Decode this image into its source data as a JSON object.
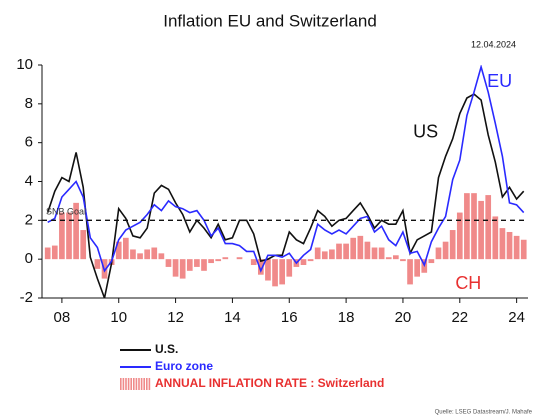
{
  "chart_data": {
    "type": "line",
    "title": "Inflation EU and Switzerland",
    "date": "12.04.2024",
    "source": "Quelle: LSEG Datastream/J. Mahafe",
    "goal": 2,
    "goal_label": "SNB Goal",
    "annotations": [
      {
        "text": "US",
        "x": 2020.8,
        "y": 6.5,
        "color": "#111111"
      },
      {
        "text": "EU",
        "x": 2023.4,
        "y": 9.1,
        "color": "#2a2aff"
      },
      {
        "text": "CH",
        "x": 2022.3,
        "y": -1.3,
        "color": "#e83030"
      }
    ],
    "x": [
      2007.5,
      2007.75,
      2008,
      2008.25,
      2008.5,
      2008.75,
      2009,
      2009.25,
      2009.5,
      2009.75,
      2010,
      2010.25,
      2010.5,
      2010.75,
      2011,
      2011.25,
      2011.5,
      2011.75,
      2012,
      2012.25,
      2012.5,
      2012.75,
      2013,
      2013.25,
      2013.5,
      2013.75,
      2014,
      2014.25,
      2014.5,
      2014.75,
      2015,
      2015.25,
      2015.5,
      2015.75,
      2016,
      2016.25,
      2016.5,
      2016.75,
      2017,
      2017.25,
      2017.5,
      2017.75,
      2018,
      2018.25,
      2018.5,
      2018.75,
      2019,
      2019.25,
      2019.5,
      2019.75,
      2020,
      2020.25,
      2020.5,
      2020.75,
      2021,
      2021.25,
      2021.5,
      2021.75,
      2022,
      2022.25,
      2022.5,
      2022.75,
      2023,
      2023.25,
      2023.5,
      2023.75,
      2024,
      2024.25
    ],
    "series": [
      {
        "name": "ANNUAL INFLATION RATE : Switzerland",
        "type": "bar",
        "color": "#f08a8a",
        "text_color": "#e83030",
        "values": [
          0.6,
          0.7,
          2.4,
          2.4,
          2.9,
          1.5,
          0.0,
          -0.5,
          -1.0,
          -0.3,
          0.9,
          1.1,
          0.5,
          0.3,
          0.5,
          0.6,
          0.3,
          -0.4,
          -0.9,
          -1.0,
          -0.6,
          -0.4,
          -0.6,
          -0.2,
          -0.1,
          0.1,
          0.0,
          0.1,
          0.0,
          -0.3,
          -0.8,
          -1.1,
          -1.4,
          -1.3,
          -0.9,
          -0.4,
          -0.3,
          -0.1,
          0.6,
          0.4,
          0.5,
          0.8,
          0.8,
          1.1,
          1.2,
          0.9,
          0.6,
          0.6,
          0.1,
          0.2,
          -0.1,
          -1.3,
          -0.9,
          -0.7,
          -0.2,
          0.6,
          0.9,
          1.5,
          2.4,
          3.4,
          3.4,
          3.0,
          3.3,
          2.2,
          1.6,
          1.4,
          1.2,
          1.0
        ]
      },
      {
        "name": "U.S.",
        "color": "#111111",
        "text_color": "#111111",
        "values": [
          2.4,
          3.5,
          4.2,
          4.0,
          5.5,
          3.7,
          0.1,
          -1.0,
          -2.0,
          -0.2,
          2.6,
          2.1,
          1.2,
          1.1,
          1.6,
          3.4,
          3.8,
          3.6,
          2.9,
          2.3,
          1.4,
          2.0,
          1.6,
          1.1,
          1.8,
          1.0,
          1.1,
          2.0,
          2.0,
          1.3,
          -0.1,
          0.0,
          0.2,
          0.2,
          1.4,
          1.0,
          0.8,
          1.6,
          2.5,
          2.2,
          1.7,
          2.0,
          2.1,
          2.5,
          2.9,
          2.3,
          1.6,
          2.0,
          1.8,
          1.8,
          2.5,
          0.3,
          1.0,
          1.2,
          1.4,
          4.2,
          5.3,
          6.2,
          7.5,
          8.3,
          8.5,
          8.2,
          6.4,
          5.0,
          3.2,
          3.7,
          3.1,
          3.5
        ]
      },
      {
        "name": "Euro zone",
        "color": "#2a2aff",
        "text_color": "#2a2aff",
        "values": [
          1.9,
          2.1,
          3.2,
          3.6,
          4.0,
          3.2,
          1.1,
          0.6,
          -0.6,
          -0.1,
          1.0,
          1.5,
          1.7,
          1.9,
          2.3,
          2.8,
          2.5,
          3.0,
          2.7,
          2.6,
          2.4,
          2.5,
          2.0,
          1.2,
          1.6,
          0.8,
          0.8,
          0.7,
          0.4,
          0.4,
          -0.6,
          0.2,
          0.2,
          0.1,
          0.3,
          -0.2,
          0.2,
          0.5,
          1.8,
          1.5,
          1.3,
          1.5,
          1.3,
          1.7,
          2.1,
          2.2,
          1.4,
          1.7,
          1.0,
          0.7,
          1.4,
          0.3,
          0.4,
          -0.3,
          0.9,
          1.6,
          2.2,
          4.1,
          5.1,
          7.4,
          8.6,
          9.9,
          8.6,
          7.0,
          5.3,
          2.9,
          2.8,
          2.4
        ]
      }
    ],
    "legend_order": [
      1,
      2,
      0
    ],
    "xlim": [
      2007.3,
      2024.4
    ],
    "ylim": [
      -2,
      10
    ],
    "yticks": [
      -2,
      0,
      2,
      4,
      6,
      8,
      10
    ],
    "xticks": [
      {
        "value": 2008,
        "label": "08"
      },
      {
        "value": 2010,
        "label": "10"
      },
      {
        "value": 2012,
        "label": "12"
      },
      {
        "value": 2014,
        "label": "14"
      },
      {
        "value": 2016,
        "label": "16"
      },
      {
        "value": 2018,
        "label": "18"
      },
      {
        "value": 2020,
        "label": "20"
      },
      {
        "value": 2022,
        "label": "22"
      },
      {
        "value": 2024,
        "label": "24"
      }
    ]
  }
}
